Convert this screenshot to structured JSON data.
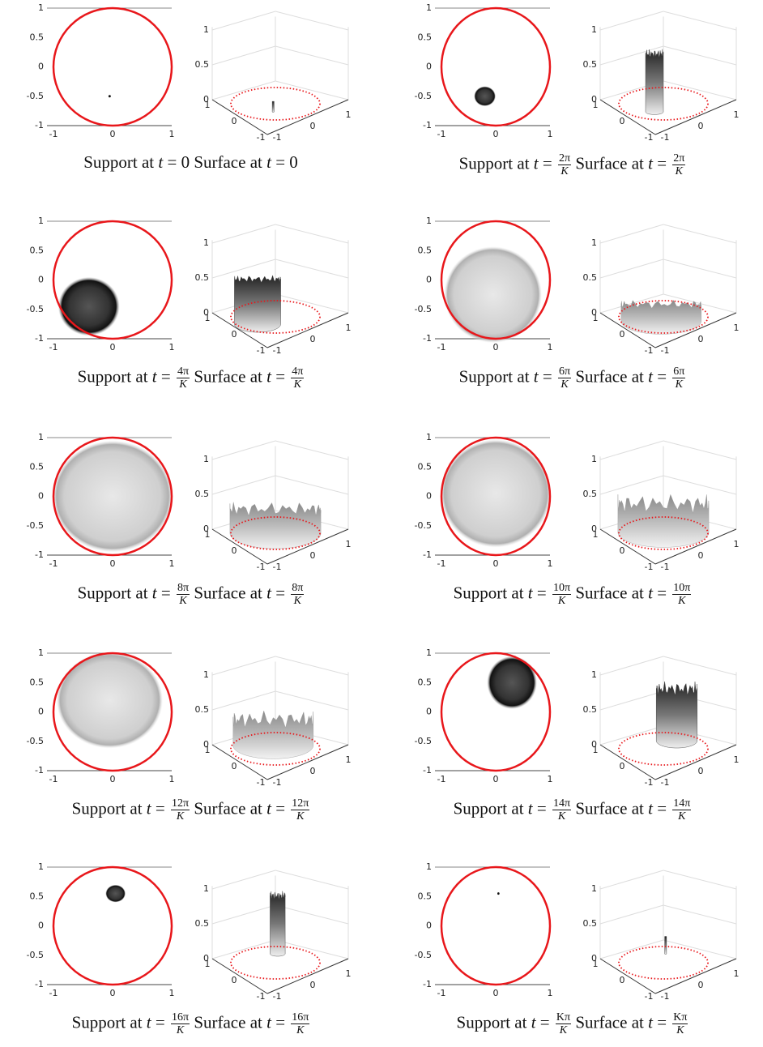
{
  "caption_support": "Support at",
  "caption_surface": "Surface at",
  "time_var": "t",
  "equals": "=",
  "support_yticks": [
    "1",
    "0.5",
    "0",
    "-0.5",
    "-1"
  ],
  "support_xticks": [
    "-1",
    "0",
    "1"
  ],
  "surface_zticks": [
    "0",
    "0.5",
    "1"
  ],
  "surface_left_ticks": [
    "1",
    "0",
    "-1"
  ],
  "surface_right_ticks": [
    "-1",
    "0",
    "1"
  ],
  "panels": [
    {
      "value": "0"
    },
    {
      "num": "2π",
      "den": "K"
    },
    {
      "num": "4π",
      "den": "K"
    },
    {
      "num": "6π",
      "den": "K"
    },
    {
      "num": "8π",
      "den": "K"
    },
    {
      "num": "10π",
      "den": "K"
    },
    {
      "num": "12π",
      "den": "K"
    },
    {
      "num": "14π",
      "den": "K"
    },
    {
      "num": "16π",
      "den": "K"
    },
    {
      "num": "Kπ",
      "den": "K"
    }
  ]
}
